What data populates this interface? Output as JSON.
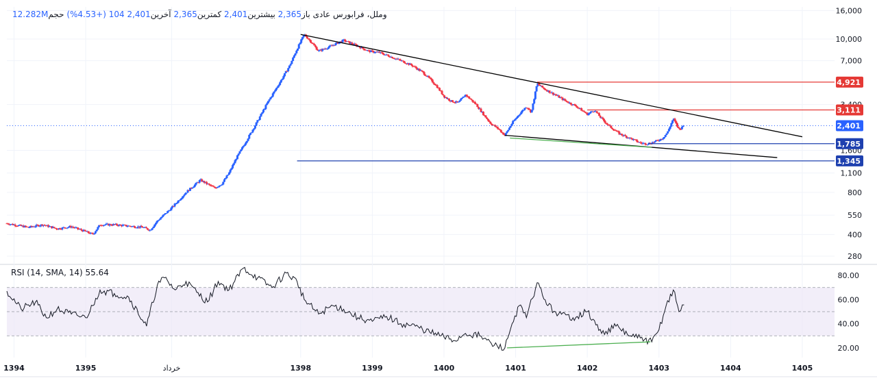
{
  "header": {
    "symbol": "وملل، فرابورس عادی",
    "open_label": "باز",
    "open_value": "2,365",
    "high_label": "بیشترین",
    "high_value": "2,401",
    "low_label": "کمترین",
    "low_value": "2,365",
    "close_label": "آخرین",
    "close_value": "2,401",
    "change_text": "104 (+4.53%)",
    "volume_label": "حجم",
    "volume_value": "12.282M"
  },
  "rsi_header": {
    "label": "RSI (14, SMA, 14)",
    "value": "55.64"
  },
  "chart_data": [
    {
      "type": "candlestick",
      "scale": "log",
      "x_ticks": [
        "1394",
        "1395",
        "خرداد",
        "1398",
        "1399",
        "1400",
        "1401",
        "1402",
        "1403",
        "1404",
        "1405"
      ],
      "x_tick_values": [
        1394.0,
        1395.0,
        1396.2,
        1398.0,
        1399.0,
        1400.0,
        1401.0,
        1402.0,
        1403.0,
        1404.0,
        1405.0
      ],
      "x_range": [
        1393.9,
        1405.45
      ],
      "y_ticks": [
        16000,
        10000,
        7000,
        3400,
        1600,
        1100,
        800,
        550,
        400,
        280
      ],
      "y_tick_labels": [
        "16,000",
        "10,000",
        "7,000",
        "3,400",
        "1,600",
        "1,100",
        "800",
        "550",
        "400",
        "280"
      ],
      "y_range": [
        250,
        17000
      ],
      "last_price": 2401,
      "last_price_label": "2,401",
      "price_path": [
        [
          1393.9,
          480
        ],
        [
          1394.2,
          450
        ],
        [
          1394.4,
          470
        ],
        [
          1394.6,
          440
        ],
        [
          1394.8,
          455
        ],
        [
          1395.0,
          420
        ],
        [
          1395.1,
          400
        ],
        [
          1395.2,
          470
        ],
        [
          1395.4,
          470
        ],
        [
          1395.6,
          460
        ],
        [
          1395.8,
          450
        ],
        [
          1395.9,
          430
        ],
        [
          1396.0,
          500
        ],
        [
          1396.2,
          620
        ],
        [
          1396.4,
          800
        ],
        [
          1396.6,
          980
        ],
        [
          1396.8,
          860
        ],
        [
          1396.9,
          920
        ],
        [
          1397.0,
          1100
        ],
        [
          1397.1,
          1400
        ],
        [
          1397.25,
          1900
        ],
        [
          1397.4,
          2600
        ],
        [
          1397.55,
          3600
        ],
        [
          1397.7,
          4800
        ],
        [
          1397.85,
          6500
        ],
        [
          1397.95,
          8500
        ],
        [
          1398.05,
          10800
        ],
        [
          1398.15,
          9500
        ],
        [
          1398.25,
          8200
        ],
        [
          1398.4,
          8800
        ],
        [
          1398.6,
          9800
        ],
        [
          1398.8,
          8900
        ],
        [
          1398.95,
          8200
        ],
        [
          1399.1,
          8000
        ],
        [
          1399.25,
          7500
        ],
        [
          1399.4,
          7000
        ],
        [
          1399.55,
          6500
        ],
        [
          1399.7,
          5800
        ],
        [
          1399.8,
          5200
        ],
        [
          1399.9,
          4600
        ],
        [
          1400.0,
          3900
        ],
        [
          1400.1,
          3600
        ],
        [
          1400.2,
          3500
        ],
        [
          1400.3,
          4000
        ],
        [
          1400.45,
          3400
        ],
        [
          1400.55,
          2900
        ],
        [
          1400.65,
          2500
        ],
        [
          1400.75,
          2300
        ],
        [
          1400.85,
          2050
        ],
        [
          1400.95,
          2500
        ],
        [
          1401.05,
          2900
        ],
        [
          1401.15,
          3300
        ],
        [
          1401.22,
          3000
        ],
        [
          1401.3,
          4800
        ],
        [
          1401.4,
          4400
        ],
        [
          1401.55,
          4000
        ],
        [
          1401.7,
          3600
        ],
        [
          1401.85,
          3300
        ],
        [
          1402.0,
          2900
        ],
        [
          1402.1,
          3100
        ],
        [
          1402.2,
          2700
        ],
        [
          1402.3,
          2400
        ],
        [
          1402.45,
          2100
        ],
        [
          1402.6,
          1950
        ],
        [
          1402.75,
          1800
        ],
        [
          1402.85,
          1785
        ],
        [
          1402.95,
          1850
        ],
        [
          1403.05,
          1950
        ],
        [
          1403.12,
          2150
        ],
        [
          1403.2,
          2700
        ],
        [
          1403.28,
          2250
        ],
        [
          1403.35,
          2401
        ]
      ],
      "trendlines": [
        {
          "color": "#000000",
          "from": [
            1398.0,
            10800
          ],
          "to": [
            1405.0,
            2000
          ]
        },
        {
          "color": "#000000",
          "from": [
            1400.85,
            2050
          ],
          "to": [
            1404.65,
            1420
          ]
        },
        {
          "color": "#4caf50",
          "from": [
            1400.92,
            1960
          ],
          "to": [
            1402.9,
            1680
          ]
        }
      ],
      "levels": [
        {
          "value": 4921,
          "label": "4,921",
          "color": "#e53935",
          "start_x": 1401.3
        },
        {
          "value": 3111,
          "label": "3,111",
          "color": "#e53935",
          "start_x": 1402.0
        },
        {
          "value": 1785,
          "label": "1,785",
          "color": "#1e40af",
          "start_x": 1402.85
        },
        {
          "value": 1345,
          "label": "1,345",
          "color": "#1e40af",
          "start_x": 1397.95
        }
      ]
    },
    {
      "type": "line",
      "name": "RSI (14, SMA, 14)",
      "y_range": [
        12,
        88
      ],
      "y_ticks": [
        80,
        60,
        40,
        20
      ],
      "y_tick_labels": [
        "80.00",
        "60.00",
        "40.00",
        "20.00"
      ],
      "band": [
        30,
        70
      ],
      "midline": 50,
      "x": [
        1393.9,
        1394.1,
        1394.3,
        1394.45,
        1394.6,
        1394.8,
        1395.0,
        1395.1,
        1395.2,
        1395.4,
        1395.6,
        1395.85,
        1396.0,
        1396.1,
        1396.25,
        1396.4,
        1396.55,
        1396.7,
        1396.85,
        1397.0,
        1397.2,
        1397.4,
        1397.6,
        1397.8,
        1397.95,
        1398.05,
        1398.25,
        1398.45,
        1398.6,
        1398.8,
        1399.0,
        1399.2,
        1399.4,
        1399.6,
        1399.8,
        1400.0,
        1400.15,
        1400.3,
        1400.5,
        1400.7,
        1400.85,
        1400.95,
        1401.05,
        1401.15,
        1401.3,
        1401.45,
        1401.6,
        1401.8,
        1402.0,
        1402.2,
        1402.4,
        1402.6,
        1402.8,
        1402.9,
        1403.0,
        1403.1,
        1403.2,
        1403.28,
        1403.35
      ],
      "values": [
        67,
        52,
        58,
        45,
        52,
        48,
        45,
        55,
        68,
        65,
        62,
        38,
        72,
        78,
        68,
        75,
        66,
        58,
        75,
        68,
        86,
        78,
        70,
        82,
        75,
        60,
        48,
        55,
        52,
        45,
        42,
        46,
        40,
        38,
        33,
        29,
        26,
        32,
        30,
        22,
        20,
        40,
        55,
        45,
        74,
        55,
        48,
        45,
        50,
        32,
        38,
        30,
        27,
        25,
        35,
        55,
        68,
        50,
        55.64
      ],
      "divergence": {
        "color": "#4caf50",
        "from": [
          1400.88,
          20
        ],
        "to": [
          1402.88,
          25
        ]
      }
    }
  ]
}
